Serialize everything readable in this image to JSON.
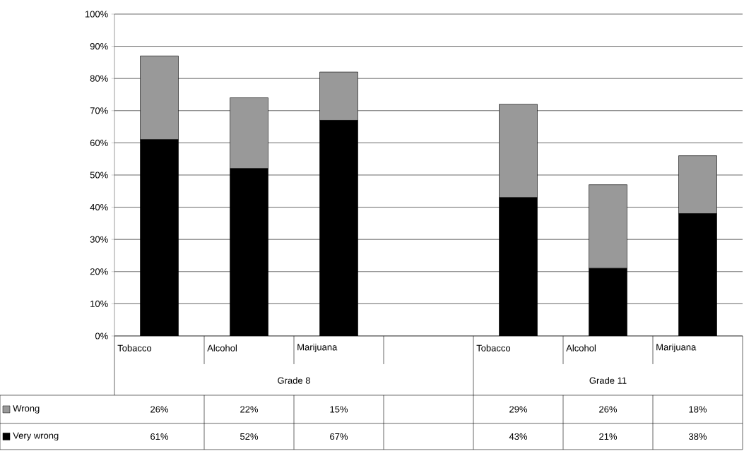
{
  "chart_data": {
    "type": "bar",
    "stacked": true,
    "categories": [
      "Tobacco",
      "Alcohol",
      "Marijuana",
      null,
      "Tobacco",
      "Alcohol",
      "Marijuana"
    ],
    "series": [
      {
        "name": "Very wrong",
        "color": "#000000",
        "values": [
          61,
          52,
          67,
          null,
          43,
          21,
          38
        ],
        "value_labels": [
          "61%",
          "52%",
          "67%",
          null,
          "43%",
          "21%",
          "38%"
        ]
      },
      {
        "name": "Wrong",
        "color": "#999999",
        "values": [
          26,
          22,
          15,
          null,
          29,
          26,
          18
        ],
        "value_labels": [
          "26%",
          "22%",
          "15%",
          null,
          "29%",
          "26%",
          "18%"
        ]
      }
    ],
    "annotations": [
      "Grade 8",
      "Grade 11"
    ],
    "ylim": [
      0,
      100
    ],
    "yticks": [
      {
        "value": 0,
        "label": "0%"
      },
      {
        "value": 10,
        "label": "10%"
      },
      {
        "value": 20,
        "label": "20%"
      },
      {
        "value": 30,
        "label": "30%"
      },
      {
        "value": 40,
        "label": "40%"
      },
      {
        "value": 50,
        "label": "50%"
      },
      {
        "value": 60,
        "label": "60%"
      },
      {
        "value": 70,
        "label": "70%"
      },
      {
        "value": 80,
        "label": "80%"
      },
      {
        "value": 90,
        "label": "90%"
      },
      {
        "value": 100,
        "label": "100%"
      }
    ],
    "grid": "y",
    "legend": "bottom left"
  }
}
